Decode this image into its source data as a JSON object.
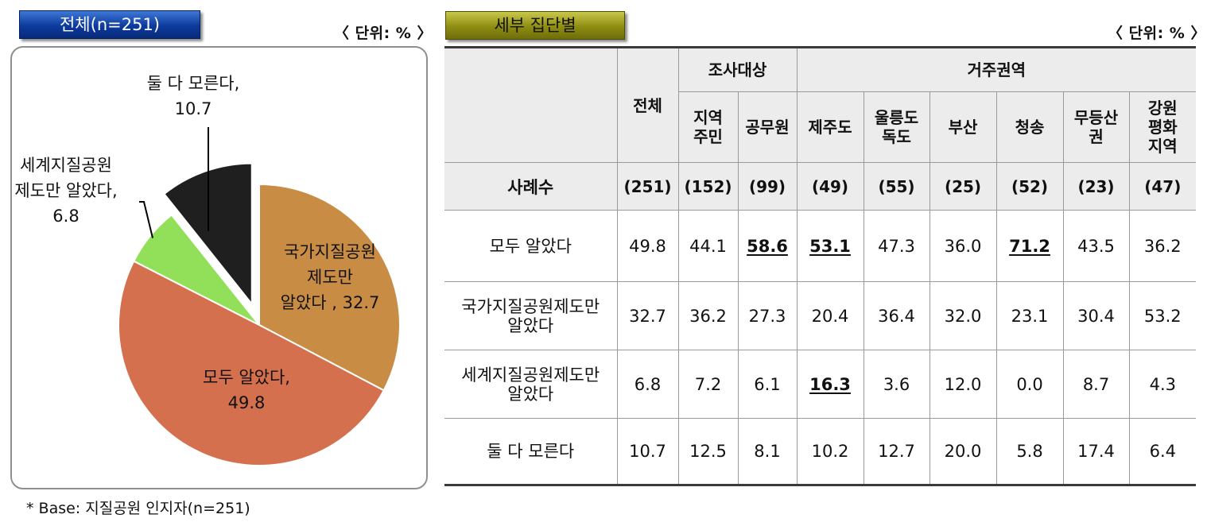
{
  "left_panel": {
    "title": "전체(n=251)",
    "unit": "〈 단위: % 〉",
    "footnote": "* Base: 지질공원 인지자(n=251)"
  },
  "right_panel": {
    "title": "세부 집단별",
    "unit": "〈 단위: % 〉"
  },
  "colors": {
    "badge_total": "#0c3a9c",
    "badge_sub": "#8e8d12",
    "national_only": "#c98c45",
    "both_known": "#d4704d",
    "world_only": "#92e05a",
    "neither": "#1f1f1f"
  },
  "chart_data": {
    "type": "pie",
    "slices": [
      {
        "label_lines": [
          "국가지질공원",
          "제도만",
          "알았다 , 32.7"
        ],
        "value": 32.7,
        "color": "#c98c45"
      },
      {
        "label_lines": [
          "모두 알았다,",
          "49.8"
        ],
        "value": 49.8,
        "color": "#d4704d"
      },
      {
        "label_lines": [
          "세계지질공원",
          "제도만 알았다,",
          "6.8"
        ],
        "value": 6.8,
        "color": "#92e05a"
      },
      {
        "label_lines": [
          "둘 다 모른다,",
          "10.7"
        ],
        "value": 10.7,
        "color": "#1f1f1f",
        "exploded": true
      }
    ]
  },
  "table": {
    "corner": "",
    "total_header": "전체",
    "group_survey": "조사대상",
    "group_region": "거주권역",
    "columns": [
      "지역\n주민",
      "공무원",
      "제주도",
      "울릉도\n독도",
      "부산",
      "청송",
      "무등산\n권",
      "강원\n평화\n지역"
    ],
    "count_row": {
      "label": "사례수",
      "values": [
        "(251)",
        "(152)",
        "(99)",
        "(49)",
        "(55)",
        "(25)",
        "(52)",
        "(23)",
        "(47)"
      ]
    },
    "rows": [
      {
        "label": "모두 알았다",
        "values": [
          "49.8",
          "44.1",
          "58.6",
          "53.1",
          "47.3",
          "36.0",
          "71.2",
          "43.5",
          "36.2"
        ],
        "highlight": [
          2,
          3,
          6
        ]
      },
      {
        "label": "국가지질공원제도만\n알았다",
        "values": [
          "32.7",
          "36.2",
          "27.3",
          "20.4",
          "36.4",
          "32.0",
          "23.1",
          "30.4",
          "53.2"
        ],
        "highlight": []
      },
      {
        "label": "세계지질공원제도만\n알았다",
        "values": [
          "6.8",
          "7.2",
          "6.1",
          "16.3",
          "3.6",
          "12.0",
          "0.0",
          "8.7",
          "4.3"
        ],
        "highlight": [
          3
        ]
      },
      {
        "label": "둘 다 모른다",
        "values": [
          "10.7",
          "12.5",
          "8.1",
          "10.2",
          "12.7",
          "20.0",
          "5.8",
          "17.4",
          "6.4"
        ],
        "highlight": []
      }
    ]
  }
}
